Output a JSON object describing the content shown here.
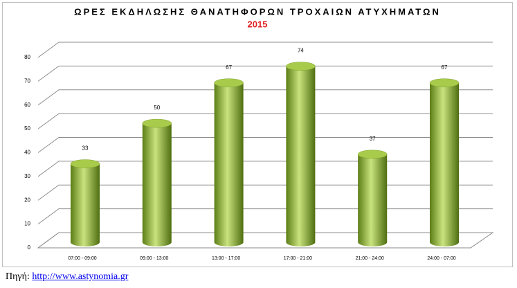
{
  "chart_data": {
    "type": "bar",
    "title": "ΩΡΕΣ ΕΚΔΗΛΩΣΗΣ ΘΑΝΑΤΗΦΟΡΩΝ ΤΡΟΧΑΙΩΝ ΑΤΥΧΗΜΑΤΩΝ",
    "subtitle": "2015",
    "categories": [
      "07:00 - 09:00",
      "09:00 - 13:00",
      "13:00 - 17:00",
      "17:00 - 21:00",
      "21:00 - 24:00",
      "24:00 - 07:00"
    ],
    "values": [
      33,
      50,
      67,
      74,
      37,
      67
    ],
    "color": "#8db33a",
    "ylim": [
      0,
      80
    ],
    "yticks": [
      0,
      10,
      20,
      30,
      40,
      50,
      60,
      70,
      80
    ],
    "grid": true,
    "source_label": "Πηγή:",
    "source_url": "http://www.astynomia.gr"
  }
}
